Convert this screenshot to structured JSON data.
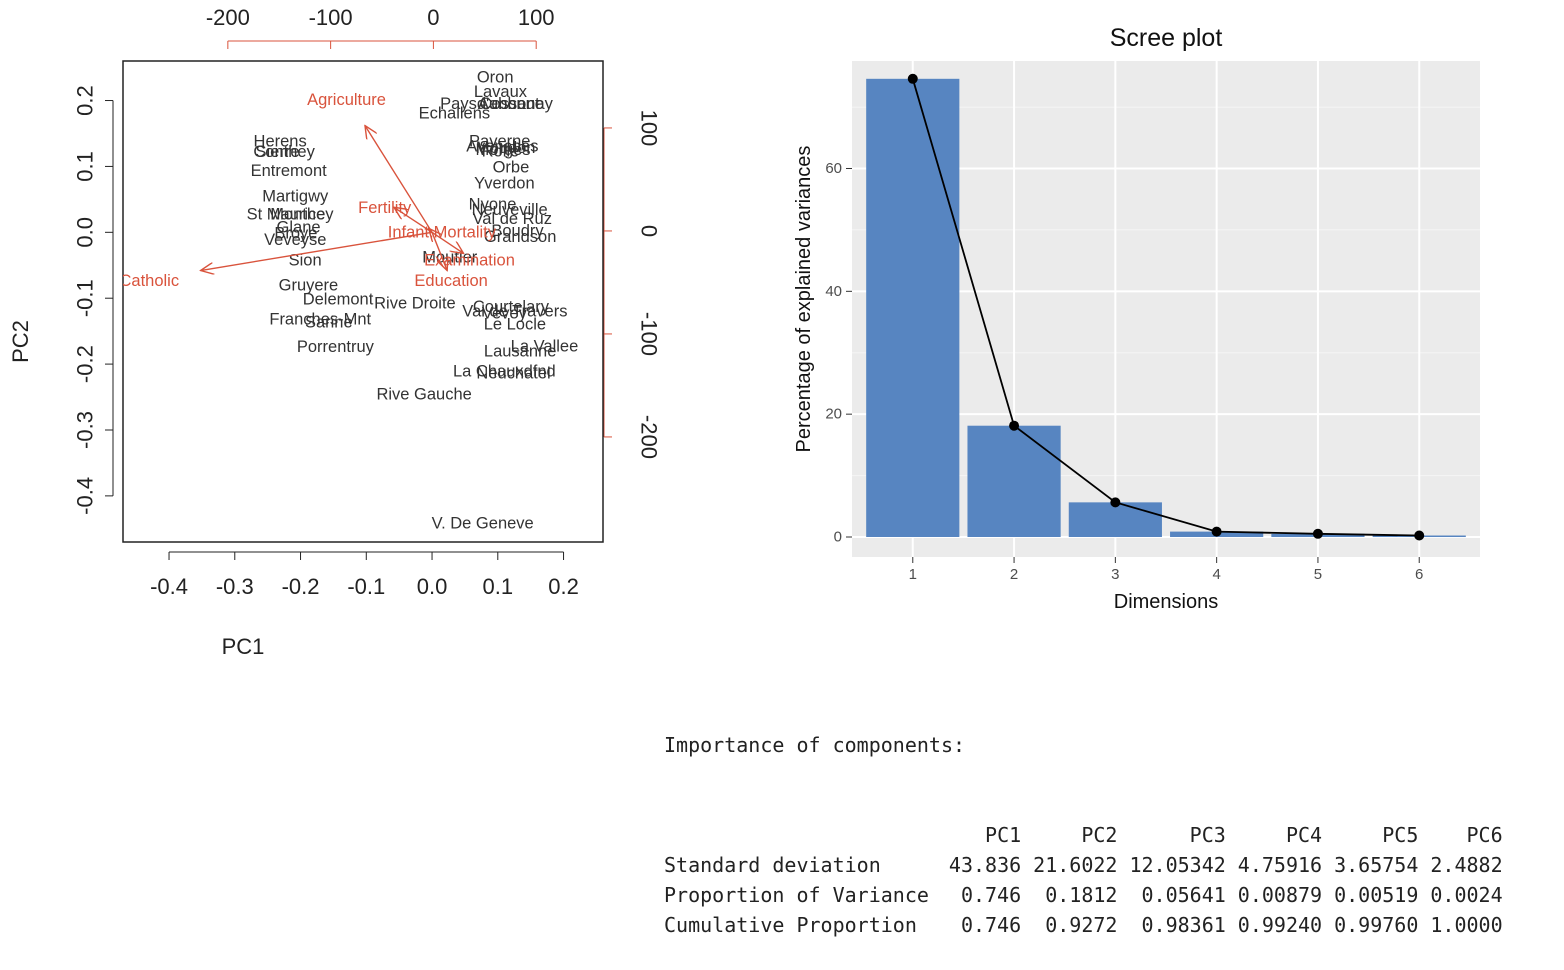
{
  "chart_data": [
    {
      "type": "scatter",
      "subtype": "biplot",
      "xlabel": "PC1",
      "ylabel": "PC2",
      "xlim": [
        -0.47,
        0.26
      ],
      "ylim": [
        -0.47,
        0.26
      ],
      "xticks": [
        -0.4,
        -0.3,
        -0.2,
        -0.1,
        0.0,
        0.1,
        0.2
      ],
      "xtick_labels": [
        "-0.4",
        "-0.3",
        "-0.2",
        "-0.1",
        "0.0",
        "0.1",
        "0.2"
      ],
      "yticks": [
        -0.4,
        -0.3,
        -0.2,
        -0.1,
        0.0,
        0.1,
        0.2
      ],
      "ytick_labels": [
        "-0.4",
        "-0.3",
        "-0.2",
        "-0.1",
        "0.0",
        "0.1",
        "0.2"
      ],
      "top_axis": {
        "lim": [
          -302,
          165
        ],
        "ticks": [
          -200,
          -100,
          0,
          100
        ],
        "labels": [
          "-200",
          "-100",
          "0",
          "100"
        ]
      },
      "right_axis": {
        "lim": [
          -302,
          165
        ],
        "ticks": [
          -200,
          -100,
          0,
          100
        ],
        "labels": [
          "-200",
          "-100",
          "0",
          "100"
        ]
      },
      "points": [
        {
          "label": "Oron",
          "x": 0.096,
          "y": 0.235
        },
        {
          "label": "Lavaux",
          "x": 0.104,
          "y": 0.213
        },
        {
          "label": "Paysd'enhaut",
          "x": 0.088,
          "y": 0.195
        },
        {
          "label": "Aubonne",
          "x": 0.12,
          "y": 0.195
        },
        {
          "label": "Cossonay",
          "x": 0.128,
          "y": 0.195
        },
        {
          "label": "Echallens",
          "x": 0.034,
          "y": 0.18
        },
        {
          "label": "Herens",
          "x": -0.231,
          "y": 0.138
        },
        {
          "label": "Conthey",
          "x": -0.225,
          "y": 0.122
        },
        {
          "label": "Sierre",
          "x": -0.235,
          "y": 0.122
        },
        {
          "label": "Entremont",
          "x": -0.218,
          "y": 0.093
        },
        {
          "label": "Payerne",
          "x": 0.103,
          "y": 0.138
        },
        {
          "label": "Avenches",
          "x": 0.107,
          "y": 0.13
        },
        {
          "label": "Moudon",
          "x": 0.112,
          "y": 0.128
        },
        {
          "label": "Morges",
          "x": 0.108,
          "y": 0.125
        },
        {
          "label": "Rolle",
          "x": 0.104,
          "y": 0.123
        },
        {
          "label": "Orbe",
          "x": 0.12,
          "y": 0.098
        },
        {
          "label": "Yverdon",
          "x": 0.11,
          "y": 0.074
        },
        {
          "label": "Martigwy",
          "x": -0.208,
          "y": 0.054
        },
        {
          "label": "St Maurice",
          "x": -0.222,
          "y": 0.027
        },
        {
          "label": "Monthey",
          "x": -0.198,
          "y": 0.027
        },
        {
          "label": "Nyone",
          "x": 0.092,
          "y": 0.042
        },
        {
          "label": "Neuveville",
          "x": 0.118,
          "y": 0.034
        },
        {
          "label": "Val de Ruz",
          "x": 0.122,
          "y": 0.02
        },
        {
          "label": "Glane",
          "x": -0.203,
          "y": 0.007
        },
        {
          "label": "Broye",
          "x": -0.207,
          "y": -0.002
        },
        {
          "label": "Veveyse",
          "x": -0.208,
          "y": -0.012
        },
        {
          "label": "Boudry",
          "x": 0.13,
          "y": 0.002
        },
        {
          "label": "Grandson",
          "x": 0.134,
          "y": -0.007
        },
        {
          "label": "Sion",
          "x": -0.193,
          "y": -0.043
        },
        {
          "label": "Moutier",
          "x": 0.027,
          "y": -0.038
        },
        {
          "label": "Gruyere",
          "x": -0.188,
          "y": -0.081
        },
        {
          "label": "Delemont",
          "x": -0.143,
          "y": -0.102
        },
        {
          "label": "Rive Droite",
          "x": -0.026,
          "y": -0.108
        },
        {
          "label": "Courtelary",
          "x": 0.12,
          "y": -0.113
        },
        {
          "label": "Vevey",
          "x": 0.11,
          "y": -0.123
        },
        {
          "label": "Val de Travers",
          "x": 0.126,
          "y": -0.12
        },
        {
          "label": "Le Locle",
          "x": 0.126,
          "y": -0.14
        },
        {
          "label": "Franches-Mnt",
          "x": -0.17,
          "y": -0.132
        },
        {
          "label": "Sarine",
          "x": -0.157,
          "y": -0.137
        },
        {
          "label": "Porrentruy",
          "x": -0.147,
          "y": -0.174
        },
        {
          "label": "Lausanne",
          "x": 0.134,
          "y": -0.181
        },
        {
          "label": "La Vallee",
          "x": 0.171,
          "y": -0.173
        },
        {
          "label": "La Chauxdfnd",
          "x": 0.11,
          "y": -0.211
        },
        {
          "label": "Neuchatel",
          "x": 0.124,
          "y": -0.214
        },
        {
          "label": "Rive Gauche",
          "x": -0.012,
          "y": -0.246
        },
        {
          "label": "V. De Geneve",
          "x": 0.077,
          "y": -0.442
        }
      ],
      "loadings": [
        {
          "label": "Agriculture",
          "x": -0.13,
          "y": 0.201,
          "tip_x": -0.102,
          "tip_y": 0.162
        },
        {
          "label": "Fertility",
          "x": -0.072,
          "y": 0.037,
          "tip_x": -0.058,
          "tip_y": 0.038
        },
        {
          "label": "Infant.Mortality",
          "x": 0.015,
          "y": 0.0,
          "tip_x": -0.005,
          "tip_y": 0.006
        },
        {
          "label": "Examination",
          "x": 0.057,
          "y": -0.043,
          "tip_x": 0.048,
          "tip_y": -0.032
        },
        {
          "label": "Education",
          "x": 0.029,
          "y": -0.074,
          "tip_x": 0.023,
          "tip_y": -0.058
        },
        {
          "label": "Catholic",
          "x": -0.43,
          "y": -0.074,
          "tip_x": -0.352,
          "tip_y": -0.058
        }
      ]
    },
    {
      "type": "bar",
      "title": "Scree plot",
      "xlabel": "Dimensions",
      "ylabel": "Percentage of explained variances",
      "categories": [
        "1",
        "2",
        "3",
        "4",
        "5",
        "6"
      ],
      "values": [
        74.6,
        18.12,
        5.641,
        0.879,
        0.519,
        0.24
      ],
      "ylim": [
        0,
        77.5
      ],
      "yticks": [
        0,
        20,
        40,
        60
      ],
      "ytick_labels": [
        "0",
        "20",
        "40",
        "60"
      ],
      "line_overlay": true,
      "bar_color": "#5785c1",
      "panel_bg": "#ebebeb",
      "grid": true
    }
  ],
  "summary": {
    "heading": "Importance of components:",
    "columns": [
      "PC1",
      "PC2",
      "PC3",
      "PC4",
      "PC5",
      "PC6"
    ],
    "rows": [
      {
        "label": "Standard deviation",
        "values": [
          "43.836",
          "21.6022",
          "12.05342",
          "4.75916",
          "3.65754",
          "2.4882"
        ]
      },
      {
        "label": "Proportion of Variance",
        "values": [
          "0.746",
          "0.1812",
          "0.05641",
          "0.00879",
          "0.00519",
          "0.0024"
        ]
      },
      {
        "label": "Cumulative Proportion",
        "values": [
          "0.746",
          "0.9272",
          "0.98361",
          "0.99240",
          "0.99760",
          "1.0000"
        ]
      }
    ]
  },
  "colors": {
    "loading": "#d9533c",
    "text": "#333333",
    "axis": "#222222"
  }
}
